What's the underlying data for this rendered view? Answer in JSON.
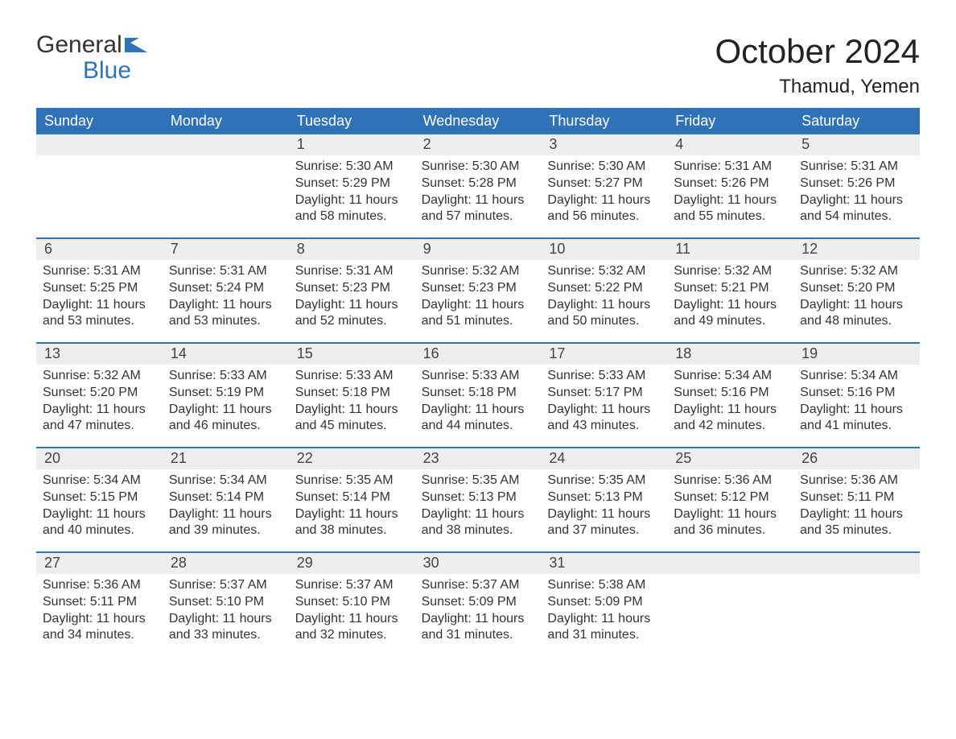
{
  "logo": {
    "top": "General",
    "bottom": "Blue",
    "flag_color": "#2f72b8"
  },
  "title": "October 2024",
  "location": "Thamud, Yemen",
  "colors": {
    "header_bg": "#2f72b8",
    "header_fg": "#ffffff",
    "strip_bg": "#eeeeee",
    "text": "#333333",
    "border": "#2f72b8"
  },
  "fonts": {
    "title_pt": 42,
    "location_pt": 24,
    "weekday_pt": 18,
    "daynum_pt": 18,
    "details_pt": 16
  },
  "weekdays": [
    "Sunday",
    "Monday",
    "Tuesday",
    "Wednesday",
    "Thursday",
    "Friday",
    "Saturday"
  ],
  "weeks": [
    [
      {
        "day": "",
        "sunrise": "",
        "sunset": "",
        "daylight": ""
      },
      {
        "day": "",
        "sunrise": "",
        "sunset": "",
        "daylight": ""
      },
      {
        "day": "1",
        "sunrise": "Sunrise: 5:30 AM",
        "sunset": "Sunset: 5:29 PM",
        "daylight": "Daylight: 11 hours and 58 minutes."
      },
      {
        "day": "2",
        "sunrise": "Sunrise: 5:30 AM",
        "sunset": "Sunset: 5:28 PM",
        "daylight": "Daylight: 11 hours and 57 minutes."
      },
      {
        "day": "3",
        "sunrise": "Sunrise: 5:30 AM",
        "sunset": "Sunset: 5:27 PM",
        "daylight": "Daylight: 11 hours and 56 minutes."
      },
      {
        "day": "4",
        "sunrise": "Sunrise: 5:31 AM",
        "sunset": "Sunset: 5:26 PM",
        "daylight": "Daylight: 11 hours and 55 minutes."
      },
      {
        "day": "5",
        "sunrise": "Sunrise: 5:31 AM",
        "sunset": "Sunset: 5:26 PM",
        "daylight": "Daylight: 11 hours and 54 minutes."
      }
    ],
    [
      {
        "day": "6",
        "sunrise": "Sunrise: 5:31 AM",
        "sunset": "Sunset: 5:25 PM",
        "daylight": "Daylight: 11 hours and 53 minutes."
      },
      {
        "day": "7",
        "sunrise": "Sunrise: 5:31 AM",
        "sunset": "Sunset: 5:24 PM",
        "daylight": "Daylight: 11 hours and 53 minutes."
      },
      {
        "day": "8",
        "sunrise": "Sunrise: 5:31 AM",
        "sunset": "Sunset: 5:23 PM",
        "daylight": "Daylight: 11 hours and 52 minutes."
      },
      {
        "day": "9",
        "sunrise": "Sunrise: 5:32 AM",
        "sunset": "Sunset: 5:23 PM",
        "daylight": "Daylight: 11 hours and 51 minutes."
      },
      {
        "day": "10",
        "sunrise": "Sunrise: 5:32 AM",
        "sunset": "Sunset: 5:22 PM",
        "daylight": "Daylight: 11 hours and 50 minutes."
      },
      {
        "day": "11",
        "sunrise": "Sunrise: 5:32 AM",
        "sunset": "Sunset: 5:21 PM",
        "daylight": "Daylight: 11 hours and 49 minutes."
      },
      {
        "day": "12",
        "sunrise": "Sunrise: 5:32 AM",
        "sunset": "Sunset: 5:20 PM",
        "daylight": "Daylight: 11 hours and 48 minutes."
      }
    ],
    [
      {
        "day": "13",
        "sunrise": "Sunrise: 5:32 AM",
        "sunset": "Sunset: 5:20 PM",
        "daylight": "Daylight: 11 hours and 47 minutes."
      },
      {
        "day": "14",
        "sunrise": "Sunrise: 5:33 AM",
        "sunset": "Sunset: 5:19 PM",
        "daylight": "Daylight: 11 hours and 46 minutes."
      },
      {
        "day": "15",
        "sunrise": "Sunrise: 5:33 AM",
        "sunset": "Sunset: 5:18 PM",
        "daylight": "Daylight: 11 hours and 45 minutes."
      },
      {
        "day": "16",
        "sunrise": "Sunrise: 5:33 AM",
        "sunset": "Sunset: 5:18 PM",
        "daylight": "Daylight: 11 hours and 44 minutes."
      },
      {
        "day": "17",
        "sunrise": "Sunrise: 5:33 AM",
        "sunset": "Sunset: 5:17 PM",
        "daylight": "Daylight: 11 hours and 43 minutes."
      },
      {
        "day": "18",
        "sunrise": "Sunrise: 5:34 AM",
        "sunset": "Sunset: 5:16 PM",
        "daylight": "Daylight: 11 hours and 42 minutes."
      },
      {
        "day": "19",
        "sunrise": "Sunrise: 5:34 AM",
        "sunset": "Sunset: 5:16 PM",
        "daylight": "Daylight: 11 hours and 41 minutes."
      }
    ],
    [
      {
        "day": "20",
        "sunrise": "Sunrise: 5:34 AM",
        "sunset": "Sunset: 5:15 PM",
        "daylight": "Daylight: 11 hours and 40 minutes."
      },
      {
        "day": "21",
        "sunrise": "Sunrise: 5:34 AM",
        "sunset": "Sunset: 5:14 PM",
        "daylight": "Daylight: 11 hours and 39 minutes."
      },
      {
        "day": "22",
        "sunrise": "Sunrise: 5:35 AM",
        "sunset": "Sunset: 5:14 PM",
        "daylight": "Daylight: 11 hours and 38 minutes."
      },
      {
        "day": "23",
        "sunrise": "Sunrise: 5:35 AM",
        "sunset": "Sunset: 5:13 PM",
        "daylight": "Daylight: 11 hours and 38 minutes."
      },
      {
        "day": "24",
        "sunrise": "Sunrise: 5:35 AM",
        "sunset": "Sunset: 5:13 PM",
        "daylight": "Daylight: 11 hours and 37 minutes."
      },
      {
        "day": "25",
        "sunrise": "Sunrise: 5:36 AM",
        "sunset": "Sunset: 5:12 PM",
        "daylight": "Daylight: 11 hours and 36 minutes."
      },
      {
        "day": "26",
        "sunrise": "Sunrise: 5:36 AM",
        "sunset": "Sunset: 5:11 PM",
        "daylight": "Daylight: 11 hours and 35 minutes."
      }
    ],
    [
      {
        "day": "27",
        "sunrise": "Sunrise: 5:36 AM",
        "sunset": "Sunset: 5:11 PM",
        "daylight": "Daylight: 11 hours and 34 minutes."
      },
      {
        "day": "28",
        "sunrise": "Sunrise: 5:37 AM",
        "sunset": "Sunset: 5:10 PM",
        "daylight": "Daylight: 11 hours and 33 minutes."
      },
      {
        "day": "29",
        "sunrise": "Sunrise: 5:37 AM",
        "sunset": "Sunset: 5:10 PM",
        "daylight": "Daylight: 11 hours and 32 minutes."
      },
      {
        "day": "30",
        "sunrise": "Sunrise: 5:37 AM",
        "sunset": "Sunset: 5:09 PM",
        "daylight": "Daylight: 11 hours and 31 minutes."
      },
      {
        "day": "31",
        "sunrise": "Sunrise: 5:38 AM",
        "sunset": "Sunset: 5:09 PM",
        "daylight": "Daylight: 11 hours and 31 minutes."
      },
      {
        "day": "",
        "sunrise": "",
        "sunset": "",
        "daylight": ""
      },
      {
        "day": "",
        "sunrise": "",
        "sunset": "",
        "daylight": ""
      }
    ]
  ]
}
